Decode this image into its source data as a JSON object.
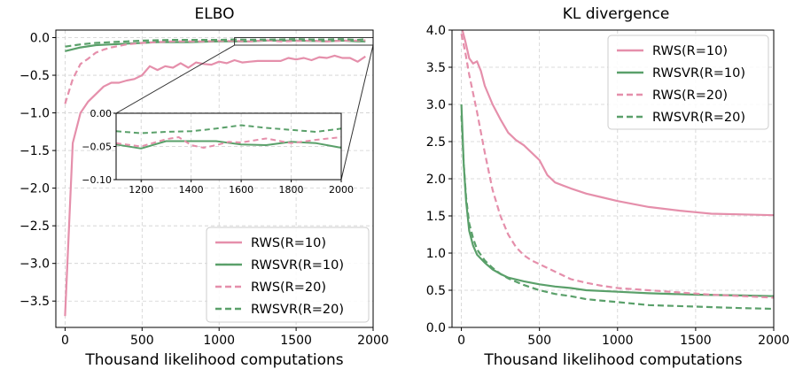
{
  "colors": {
    "rws": "#e58fab",
    "rwsvr": "#5aa06a"
  },
  "chart_data": [
    {
      "type": "line",
      "title": "ELBO",
      "xlabel": "Thousand likelihood computations",
      "ylabel": "",
      "xlim": [
        -60,
        2000
      ],
      "ylim": [
        -3.85,
        0.1
      ],
      "xticks": [
        0,
        500,
        1000,
        1500,
        2000
      ],
      "yticks": [
        0.0,
        -0.5,
        -1.0,
        -1.5,
        -2.0,
        -2.5,
        -3.0,
        -3.5
      ],
      "ytick_labels": [
        "0.0",
        "−0.5",
        "−1.0",
        "−1.5",
        "−2.0",
        "−2.5",
        "−3.0",
        "−3.5"
      ],
      "grid": true,
      "legend_position": "lower right",
      "series": [
        {
          "name": "RWS(R=10)",
          "color": "#e58fab",
          "dash": "solid",
          "x": [
            0,
            50,
            100,
            150,
            200,
            250,
            300,
            350,
            400,
            450,
            500,
            550,
            600,
            650,
            700,
            750,
            800,
            850,
            900,
            950,
            1000,
            1050,
            1100,
            1150,
            1200,
            1250,
            1300,
            1350,
            1400,
            1450,
            1500,
            1550,
            1600,
            1650,
            1700,
            1750,
            1800,
            1850,
            1900,
            1950
          ],
          "y": [
            -3.7,
            -1.4,
            -1.0,
            -0.85,
            -0.75,
            -0.65,
            -0.6,
            -0.6,
            -0.57,
            -0.55,
            -0.5,
            -0.38,
            -0.43,
            -0.38,
            -0.4,
            -0.34,
            -0.4,
            -0.33,
            -0.35,
            -0.36,
            -0.32,
            -0.34,
            -0.3,
            -0.33,
            -0.32,
            -0.31,
            -0.31,
            -0.31,
            -0.31,
            -0.27,
            -0.29,
            -0.27,
            -0.3,
            -0.26,
            -0.27,
            -0.24,
            -0.27,
            -0.27,
            -0.32,
            -0.25
          ]
        },
        {
          "name": "RWSVR(R=10)",
          "color": "#5aa06a",
          "dash": "solid",
          "x": [
            0,
            100,
            200,
            300,
            400,
            500,
            600,
            700,
            800,
            900,
            1000,
            1100,
            1200,
            1300,
            1400,
            1500,
            1600,
            1700,
            1800,
            1900,
            1950
          ],
          "y": [
            -0.18,
            -0.13,
            -0.1,
            -0.09,
            -0.08,
            -0.07,
            -0.06,
            -0.06,
            -0.06,
            -0.055,
            -0.05,
            -0.05,
            -0.05,
            -0.04,
            -0.04,
            -0.04,
            -0.045,
            -0.048,
            -0.04,
            -0.05,
            -0.05
          ]
        },
        {
          "name": "RWS(R=20)",
          "color": "#e58fab",
          "dash": "dashed",
          "x": [
            0,
            50,
            100,
            150,
            200,
            250,
            300,
            350,
            400,
            450,
            500,
            600,
            700,
            800,
            900,
            1000,
            1100,
            1200,
            1300,
            1400,
            1500,
            1600,
            1700,
            1800,
            1900,
            1950
          ],
          "y": [
            -0.88,
            -0.55,
            -0.35,
            -0.28,
            -0.2,
            -0.16,
            -0.13,
            -0.11,
            -0.09,
            -0.08,
            -0.07,
            -0.06,
            -0.05,
            -0.05,
            -0.05,
            -0.045,
            -0.045,
            -0.05,
            -0.035,
            -0.05,
            -0.045,
            -0.04,
            -0.05,
            -0.04,
            -0.04,
            -0.035
          ]
        },
        {
          "name": "RWSVR(R=20)",
          "color": "#5aa06a",
          "dash": "dashed",
          "x": [
            0,
            100,
            200,
            300,
            400,
            500,
            600,
            700,
            800,
            900,
            1000,
            1100,
            1200,
            1300,
            1400,
            1500,
            1600,
            1700,
            1800,
            1900,
            1950
          ],
          "y": [
            -0.12,
            -0.09,
            -0.07,
            -0.06,
            -0.05,
            -0.04,
            -0.035,
            -0.03,
            -0.03,
            -0.03,
            -0.03,
            -0.025,
            -0.028,
            -0.026,
            -0.025,
            -0.02,
            -0.025,
            -0.025,
            -0.02,
            -0.03,
            -0.02
          ]
        }
      ],
      "inset": {
        "xlim": [
          1100,
          2000
        ],
        "ylim": [
          -0.1,
          0.0
        ],
        "xticks": [
          1200,
          1400,
          1600,
          1800,
          2000
        ],
        "yticks": [
          0.0,
          -0.05,
          -0.1
        ],
        "ytick_labels": [
          "0.00",
          "−0.05",
          "−0.10"
        ],
        "series": [
          {
            "name": "RWSVR(R=10)",
            "color": "#5aa06a",
            "dash": "solid",
            "x": [
              1100,
              1200,
              1300,
              1400,
              1500,
              1600,
              1700,
              1800,
              1900,
              2000
            ],
            "y": [
              -0.047,
              -0.053,
              -0.042,
              -0.042,
              -0.042,
              -0.047,
              -0.048,
              -0.043,
              -0.045,
              -0.052
            ]
          },
          {
            "name": "RWS(R=20)",
            "color": "#e58fab",
            "dash": "dashed",
            "x": [
              1100,
              1200,
              1300,
              1350,
              1400,
              1450,
              1500,
              1550,
              1600,
              1700,
              1800,
              1900,
              2000
            ],
            "y": [
              -0.045,
              -0.05,
              -0.039,
              -0.036,
              -0.048,
              -0.052,
              -0.048,
              -0.043,
              -0.044,
              -0.038,
              -0.045,
              -0.04,
              -0.036
            ]
          },
          {
            "name": "RWSVR(R=20)",
            "color": "#5aa06a",
            "dash": "dashed",
            "x": [
              1100,
              1200,
              1300,
              1400,
              1500,
              1600,
              1700,
              1800,
              1900,
              2000
            ],
            "y": [
              -0.027,
              -0.03,
              -0.028,
              -0.027,
              -0.023,
              -0.018,
              -0.022,
              -0.025,
              -0.028,
              -0.023
            ]
          }
        ]
      }
    },
    {
      "type": "line",
      "title": "KL divergence",
      "xlabel": "Thousand likelihood computations",
      "ylabel": "",
      "xlim": [
        -60,
        2000
      ],
      "ylim": [
        0.0,
        4.0
      ],
      "xticks": [
        0,
        500,
        1000,
        1500,
        2000
      ],
      "yticks": [
        0.0,
        0.5,
        1.0,
        1.5,
        2.0,
        2.5,
        3.0,
        3.5,
        4.0
      ],
      "ytick_labels": [
        "0.0",
        "0.5",
        "1.0",
        "1.5",
        "2.0",
        "2.5",
        "3.0",
        "3.5",
        "4.0"
      ],
      "grid": true,
      "legend_position": "upper right",
      "series": [
        {
          "name": "RWS(R=10)",
          "color": "#e58fab",
          "dash": "solid",
          "x": [
            0,
            25,
            50,
            75,
            100,
            125,
            150,
            200,
            250,
            300,
            350,
            400,
            450,
            500,
            550,
            600,
            700,
            800,
            900,
            1000,
            1200,
            1400,
            1500,
            1600,
            1800,
            2000
          ],
          "y": [
            4.05,
            3.85,
            3.62,
            3.55,
            3.58,
            3.45,
            3.25,
            3.0,
            2.8,
            2.62,
            2.52,
            2.45,
            2.35,
            2.25,
            2.05,
            1.95,
            1.87,
            1.8,
            1.75,
            1.7,
            1.62,
            1.57,
            1.55,
            1.53,
            1.52,
            1.51
          ]
        },
        {
          "name": "RWSVR(R=10)",
          "color": "#5aa06a",
          "dash": "solid",
          "x": [
            0,
            15,
            30,
            50,
            75,
            100,
            150,
            200,
            250,
            300,
            400,
            500,
            600,
            700,
            800,
            1000,
            1200,
            1500,
            1800,
            2000
          ],
          "y": [
            3.0,
            2.2,
            1.7,
            1.3,
            1.1,
            0.98,
            0.87,
            0.78,
            0.72,
            0.67,
            0.62,
            0.58,
            0.55,
            0.53,
            0.5,
            0.48,
            0.46,
            0.44,
            0.43,
            0.42
          ]
        },
        {
          "name": "RWS(R=20)",
          "color": "#e58fab",
          "dash": "dashed",
          "x": [
            0,
            25,
            50,
            100,
            150,
            200,
            250,
            300,
            350,
            400,
            450,
            500,
            600,
            700,
            800,
            900,
            1000,
            1200,
            1400,
            1600,
            1800,
            2000
          ],
          "y": [
            3.95,
            3.7,
            3.4,
            2.9,
            2.35,
            1.85,
            1.5,
            1.25,
            1.08,
            0.97,
            0.9,
            0.85,
            0.75,
            0.65,
            0.6,
            0.56,
            0.53,
            0.5,
            0.47,
            0.44,
            0.42,
            0.4
          ]
        },
        {
          "name": "RWSVR(R=20)",
          "color": "#5aa06a",
          "dash": "dashed",
          "x": [
            0,
            15,
            30,
            50,
            75,
            100,
            150,
            200,
            250,
            300,
            400,
            500,
            600,
            700,
            800,
            1000,
            1200,
            1500,
            1800,
            2000
          ],
          "y": [
            2.85,
            2.2,
            1.75,
            1.4,
            1.2,
            1.05,
            0.9,
            0.8,
            0.72,
            0.66,
            0.57,
            0.5,
            0.45,
            0.42,
            0.38,
            0.34,
            0.3,
            0.28,
            0.26,
            0.25
          ]
        }
      ]
    }
  ]
}
